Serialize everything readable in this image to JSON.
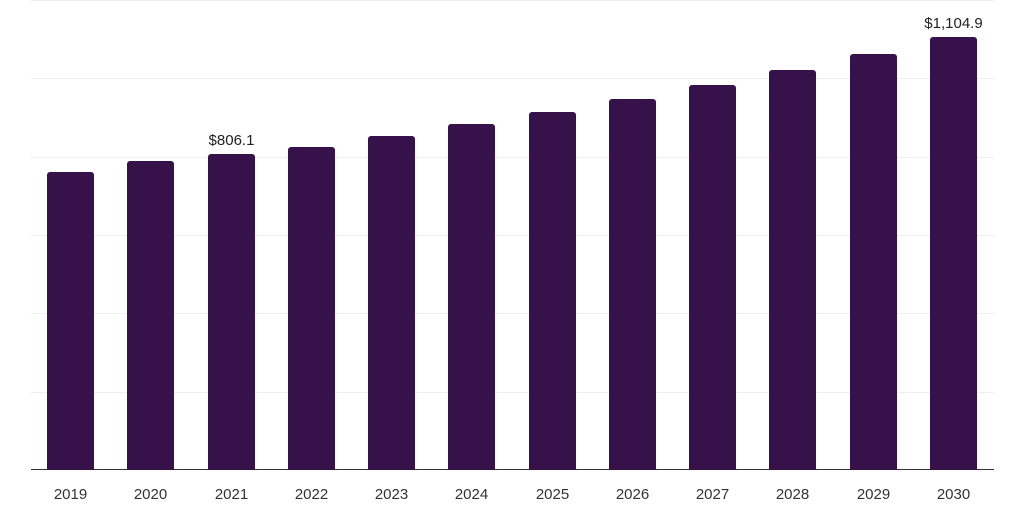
{
  "chart_data": {
    "type": "bar",
    "title": "",
    "xlabel": "",
    "ylabel": "",
    "categories": [
      "2019",
      "2020",
      "2021",
      "2022",
      "2023",
      "2024",
      "2025",
      "2026",
      "2027",
      "2028",
      "2029",
      "2030"
    ],
    "values": [
      760,
      790,
      806.1,
      824,
      852,
      883,
      913,
      946,
      982,
      1021,
      1062,
      1104.9
    ],
    "data_labels": [
      {
        "category": "2021",
        "text": "$806.1"
      },
      {
        "category": "2030",
        "text": "$1,104.9"
      }
    ],
    "ylim": [
      0,
      1200
    ],
    "yticks": [
      0,
      200,
      400,
      600,
      800,
      1000,
      1200
    ],
    "ytick_labels_visible": false,
    "grid": true,
    "legend": null,
    "bar_color": "#371149"
  }
}
